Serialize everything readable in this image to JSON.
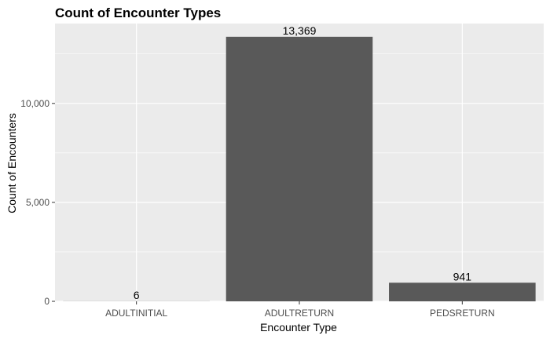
{
  "chart_data": {
    "type": "bar",
    "title": "Count of Encounter Types",
    "xlabel": "Encounter Type",
    "ylabel": "Count of Encounters",
    "categories": [
      "ADULTINITIAL",
      "ADULTRETURN",
      "PEDSRETURN"
    ],
    "values": [
      6,
      13369,
      941
    ],
    "data_labels": [
      "6",
      "13,369",
      "941"
    ],
    "ylim": [
      0,
      14037
    ],
    "y_ticks": [
      0,
      5000,
      10000
    ],
    "y_tick_labels": [
      "0",
      "5,000",
      "10,000"
    ],
    "grid": true,
    "legend": "none",
    "colors": {
      "bar": "#595959",
      "panel": "#ebebeb",
      "grid": "#ffffff",
      "tick_text": "#4d4d4d"
    }
  }
}
